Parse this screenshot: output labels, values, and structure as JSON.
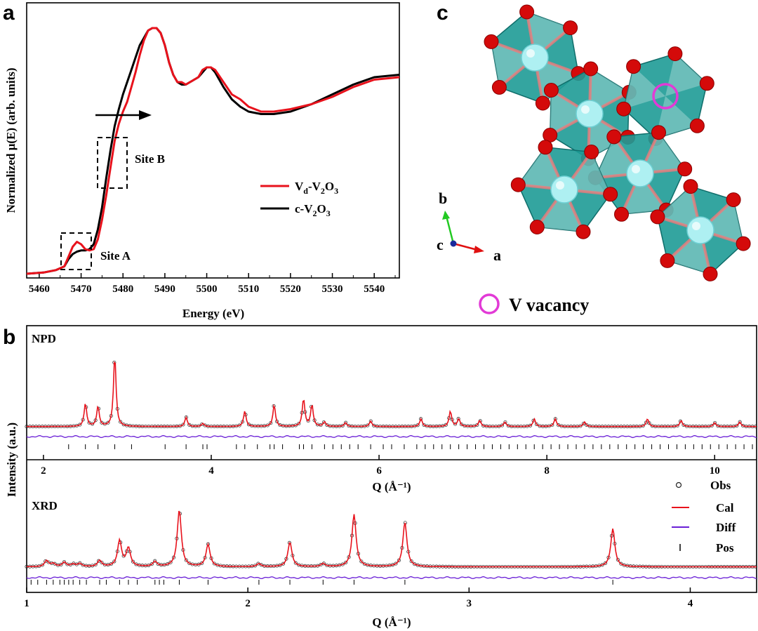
{
  "panel_labels": {
    "a": "a",
    "b": "b",
    "c": "c"
  },
  "colors": {
    "vd": "#e8121c",
    "c": "#000000",
    "cal": "#e8121c",
    "obs": "#222222",
    "diff": "#6a1fd6",
    "pos": "#000000",
    "vacancy": "#e23ad6",
    "octa": "#1e9b96",
    "vatom": "#aef0f2",
    "oatom": "#d40a0a"
  },
  "crystal": {
    "vacancy_label": "V vacancy",
    "axis_a": "a",
    "axis_b": "b",
    "axis_c": "c"
  },
  "chart_data": [
    {
      "type": "line",
      "panel": "a",
      "xlabel": "Energy (eV)",
      "ylabel": "Normalized μ(E) (arb. units)",
      "xlim": [
        5457,
        5546
      ],
      "ylim": [
        0,
        1.0
      ],
      "xticks": [
        5460,
        5470,
        5480,
        5490,
        5500,
        5510,
        5520,
        5530,
        5540
      ],
      "annotations": [
        {
          "text": "Site A",
          "x": 5472,
          "y": 0.08
        },
        {
          "text": "Site B",
          "x": 5480,
          "y": 0.47
        }
      ],
      "arrow": {
        "from": [
          5474,
          0.63
        ],
        "to": [
          5485,
          0.63
        ]
      },
      "legend": {
        "placement": "right",
        "entries": [
          {
            "main": "V",
            "sub1": "d",
            "mid": "-V",
            "sub2": "2",
            "mid2": "O",
            "sub3": "3"
          },
          {
            "main": "c-V",
            "sub1": "2",
            "mid": "O",
            "sub2": "3"
          }
        ]
      },
      "series": [
        {
          "key": "vd",
          "name": "Vd-V2O3",
          "x": [
            5457,
            5461,
            5464,
            5466,
            5467,
            5468,
            5469,
            5470,
            5471,
            5472,
            5473,
            5474,
            5475,
            5476,
            5477,
            5478,
            5479,
            5480,
            5481,
            5482,
            5483,
            5484,
            5485,
            5486,
            5487,
            5488,
            5489,
            5490,
            5491,
            5492,
            5493,
            5494,
            5495,
            5496,
            5497,
            5498,
            5499,
            5500,
            5501,
            5502,
            5504,
            5506,
            5508,
            5510,
            5513,
            5516,
            5520,
            5525,
            5530,
            5535,
            5540,
            5546
          ],
          "y": [
            0,
            0.005,
            0.015,
            0.03,
            0.07,
            0.11,
            0.13,
            0.12,
            0.1,
            0.095,
            0.1,
            0.14,
            0.22,
            0.32,
            0.43,
            0.54,
            0.61,
            0.66,
            0.7,
            0.76,
            0.82,
            0.89,
            0.95,
            0.99,
            1.0,
            1.0,
            0.98,
            0.93,
            0.86,
            0.81,
            0.78,
            0.78,
            0.77,
            0.78,
            0.79,
            0.8,
            0.83,
            0.84,
            0.84,
            0.83,
            0.78,
            0.73,
            0.71,
            0.68,
            0.66,
            0.66,
            0.67,
            0.69,
            0.72,
            0.76,
            0.79,
            0.8
          ]
        },
        {
          "key": "c",
          "name": "c-V2O3",
          "x": [
            5457,
            5461,
            5464,
            5466,
            5467,
            5468,
            5469,
            5470,
            5471,
            5472,
            5473,
            5474,
            5475,
            5476,
            5477,
            5478,
            5479,
            5480,
            5481,
            5482,
            5483,
            5484,
            5485,
            5486,
            5487,
            5488,
            5489,
            5490,
            5491,
            5492,
            5493,
            5494,
            5495,
            5496,
            5497,
            5498,
            5499,
            5500,
            5501,
            5502,
            5504,
            5506,
            5508,
            5510,
            5513,
            5516,
            5520,
            5525,
            5530,
            5535,
            5540,
            5546
          ],
          "y": [
            0,
            0.005,
            0.015,
            0.03,
            0.06,
            0.08,
            0.09,
            0.095,
            0.095,
            0.1,
            0.12,
            0.18,
            0.27,
            0.39,
            0.5,
            0.6,
            0.67,
            0.73,
            0.78,
            0.83,
            0.88,
            0.93,
            0.96,
            0.99,
            1.0,
            1.0,
            0.98,
            0.93,
            0.86,
            0.81,
            0.78,
            0.77,
            0.77,
            0.78,
            0.79,
            0.8,
            0.82,
            0.84,
            0.84,
            0.82,
            0.76,
            0.71,
            0.68,
            0.66,
            0.65,
            0.65,
            0.66,
            0.69,
            0.73,
            0.77,
            0.8,
            0.81
          ]
        }
      ]
    },
    {
      "type": "line",
      "panel": "b",
      "label": "NPD",
      "xlabel": "Q (Å⁻¹)",
      "xlim": [
        1.8,
        10.5
      ],
      "xticks": [
        2,
        4,
        6,
        8,
        10
      ],
      "background": 0.02,
      "peaks": [
        {
          "x": 2.5,
          "h": 0.3
        },
        {
          "x": 2.65,
          "h": 0.26
        },
        {
          "x": 2.85,
          "h": 0.92
        },
        {
          "x": 3.7,
          "h": 0.12
        },
        {
          "x": 3.9,
          "h": 0.04
        },
        {
          "x": 4.4,
          "h": 0.2
        },
        {
          "x": 4.75,
          "h": 0.28
        },
        {
          "x": 5.1,
          "h": 0.36
        },
        {
          "x": 5.2,
          "h": 0.28
        },
        {
          "x": 5.35,
          "h": 0.06
        },
        {
          "x": 5.6,
          "h": 0.05
        },
        {
          "x": 5.9,
          "h": 0.07
        },
        {
          "x": 6.5,
          "h": 0.1
        },
        {
          "x": 6.85,
          "h": 0.2
        },
        {
          "x": 6.95,
          "h": 0.1
        },
        {
          "x": 7.2,
          "h": 0.08
        },
        {
          "x": 7.5,
          "h": 0.06
        },
        {
          "x": 7.85,
          "h": 0.1
        },
        {
          "x": 8.1,
          "h": 0.1
        },
        {
          "x": 8.45,
          "h": 0.06
        },
        {
          "x": 9.2,
          "h": 0.1
        },
        {
          "x": 9.6,
          "h": 0.08
        },
        {
          "x": 10.0,
          "h": 0.05
        },
        {
          "x": 10.3,
          "h": 0.06
        }
      ],
      "positions": [
        2.3,
        2.5,
        2.65,
        2.85,
        3.05,
        3.45,
        3.7,
        3.9,
        3.95,
        4.3,
        4.4,
        4.55,
        4.7,
        4.75,
        4.85,
        5.05,
        5.1,
        5.2,
        5.35,
        5.45,
        5.55,
        5.65,
        5.75,
        5.9,
        6.05,
        6.15,
        6.3,
        6.45,
        6.55,
        6.65,
        6.75,
        6.85,
        6.95,
        7.05,
        7.15,
        7.25,
        7.35,
        7.45,
        7.55,
        7.65,
        7.75,
        7.85,
        7.95,
        8.05,
        8.15,
        8.25,
        8.35,
        8.45,
        8.55,
        8.65,
        8.75,
        8.85,
        8.95,
        9.05,
        9.15,
        9.25,
        9.35,
        9.45,
        9.55,
        9.65,
        9.75,
        9.85,
        9.95,
        10.05,
        10.15,
        10.25,
        10.35,
        10.45
      ]
    },
    {
      "type": "line",
      "panel": "b",
      "label": "XRD",
      "xlabel": "Q (Å⁻¹)",
      "ylabel": "Intensity (a.u.)",
      "xlim": [
        1.0,
        4.3
      ],
      "xticks": [
        1,
        2,
        3,
        4
      ],
      "background": 0.05,
      "legend": {
        "placement": "right",
        "entries": [
          "Obs",
          "Cal",
          "Diff",
          "Pos"
        ]
      },
      "peaks": [
        {
          "x": 1.09,
          "h": 0.1
        },
        {
          "x": 1.12,
          "h": 0.05
        },
        {
          "x": 1.17,
          "h": 0.07
        },
        {
          "x": 1.21,
          "h": 0.04
        },
        {
          "x": 1.24,
          "h": 0.05
        },
        {
          "x": 1.33,
          "h": 0.1
        },
        {
          "x": 1.42,
          "h": 0.42
        },
        {
          "x": 1.46,
          "h": 0.3
        },
        {
          "x": 1.58,
          "h": 0.08
        },
        {
          "x": 1.69,
          "h": 0.92
        },
        {
          "x": 1.82,
          "h": 0.36
        },
        {
          "x": 2.05,
          "h": 0.05
        },
        {
          "x": 2.19,
          "h": 0.4
        },
        {
          "x": 2.34,
          "h": 0.05
        },
        {
          "x": 2.48,
          "h": 0.85
        },
        {
          "x": 2.71,
          "h": 0.72
        },
        {
          "x": 3.65,
          "h": 0.62
        }
      ],
      "positions": [
        1.02,
        1.05,
        1.09,
        1.12,
        1.15,
        1.17,
        1.19,
        1.21,
        1.24,
        1.27,
        1.33,
        1.36,
        1.42,
        1.46,
        1.5,
        1.58,
        1.6,
        1.62,
        1.69,
        1.82,
        2.05,
        2.19,
        2.34,
        2.48,
        2.71,
        3.65
      ]
    }
  ]
}
